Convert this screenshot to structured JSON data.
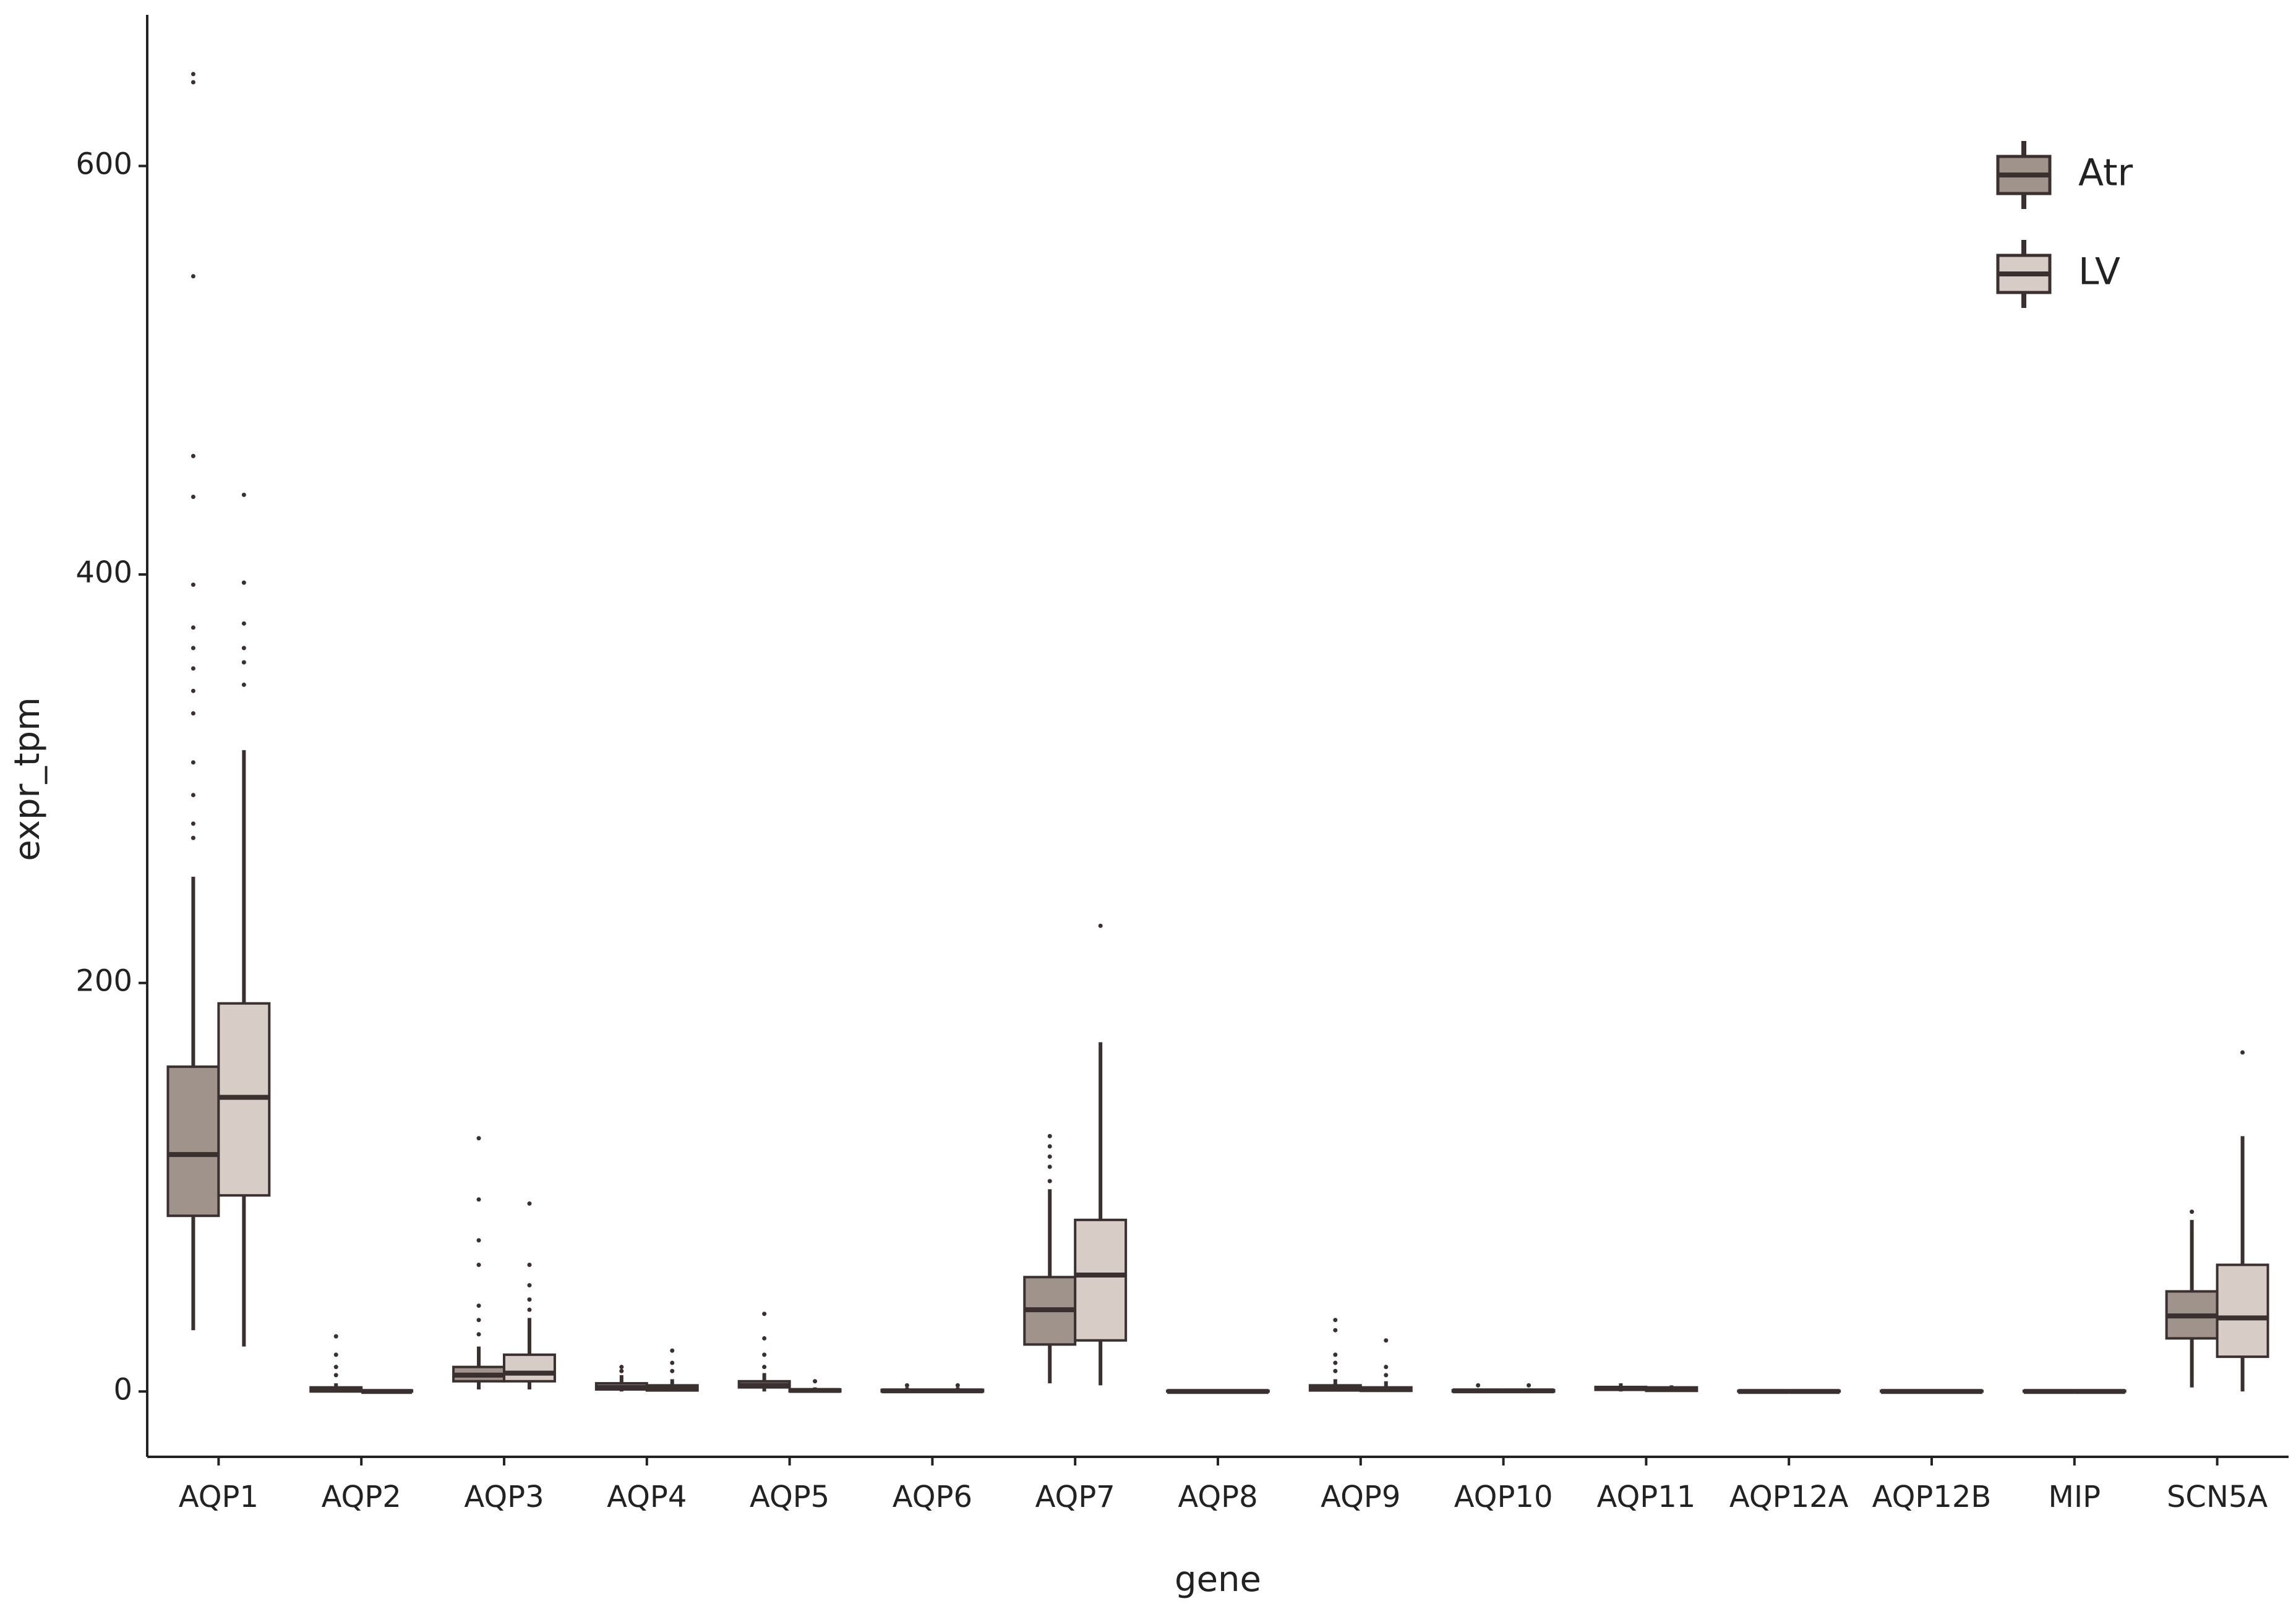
{
  "chart_data": {
    "type": "boxplot",
    "x_label": "gene",
    "y_label": "expr_tpm",
    "categories": [
      "AQP1",
      "AQP2",
      "AQP3",
      "AQP4",
      "AQP5",
      "AQP6",
      "AQP7",
      "AQP8",
      "AQP9",
      "AQP10",
      "AQP11",
      "AQP12A",
      "AQP12B",
      "MIP",
      "SCN5A"
    ],
    "ylim": [
      -32,
      674
    ],
    "yticks": [
      0,
      200,
      400,
      600
    ],
    "legend": "top-right",
    "grid": false,
    "series": [
      {
        "name": "Atr",
        "color": "#a0938c",
        "whisker_low": [
          30,
          0,
          1,
          0,
          0,
          0,
          4,
          0,
          0,
          0,
          0,
          0,
          0,
          0,
          2
        ],
        "q1": [
          86,
          0,
          5,
          1,
          2,
          0,
          23,
          0,
          0.5,
          0,
          0.8,
          0,
          0,
          0,
          26
        ],
        "median": [
          116,
          1,
          8,
          2,
          3,
          0.3,
          40,
          0,
          1.5,
          0.3,
          1.5,
          0,
          0,
          0,
          37
        ],
        "q3": [
          159,
          2,
          12,
          4,
          5,
          0.8,
          56,
          0.3,
          3,
          0.6,
          2.2,
          0.3,
          0.3,
          0.3,
          49
        ],
        "whisker_high": [
          252,
          4,
          22,
          8,
          9,
          2,
          99,
          0.8,
          6,
          1.5,
          4,
          0.8,
          0.8,
          0.8,
          84
        ],
        "outliers": [
          [
            271,
            278,
            292,
            308,
            332,
            343,
            354,
            364,
            374,
            395,
            438,
            458,
            546,
            641,
            645
          ],
          [
            8,
            12,
            18,
            27
          ],
          [
            28,
            35,
            42,
            62,
            74,
            94,
            124
          ],
          [
            10,
            12
          ],
          [
            12,
            18,
            26,
            38
          ],
          [
            3
          ],
          [
            103,
            110,
            115,
            120,
            125
          ],
          [],
          [
            10,
            14,
            18,
            30,
            35
          ],
          [
            3
          ],
          [],
          [],
          [],
          [],
          [
            88
          ]
        ]
      },
      {
        "name": "LV",
        "color": "#d8ccc7",
        "whisker_low": [
          22,
          0,
          1,
          0,
          0,
          0,
          3,
          0,
          0,
          0,
          0,
          0,
          0,
          0,
          0
        ],
        "q1": [
          96,
          0,
          5,
          0.5,
          0,
          0,
          25,
          0,
          0.3,
          0,
          0.3,
          0,
          0,
          0,
          17
        ],
        "median": [
          144,
          0,
          9,
          1.5,
          0.5,
          0.3,
          57,
          0,
          1,
          0.3,
          1,
          0,
          0,
          0,
          36
        ],
        "q3": [
          190,
          0.5,
          18,
          3,
          1,
          0.8,
          84,
          0.3,
          2,
          0.6,
          2,
          0.3,
          0.3,
          0.3,
          62
        ],
        "whisker_high": [
          314,
          1,
          36,
          6,
          2,
          2,
          171,
          0.8,
          5,
          1.5,
          3,
          0.8,
          0.8,
          0.8,
          125
        ],
        "outliers": [
          [
            346,
            357,
            364,
            376,
            396,
            439
          ],
          [],
          [
            40,
            45,
            52,
            62,
            92
          ],
          [
            10,
            14,
            20
          ],
          [
            5
          ],
          [
            3
          ],
          [
            228
          ],
          [],
          [
            8,
            12,
            25
          ],
          [
            3
          ],
          [],
          [],
          [],
          [],
          [
            166
          ]
        ]
      }
    ]
  }
}
